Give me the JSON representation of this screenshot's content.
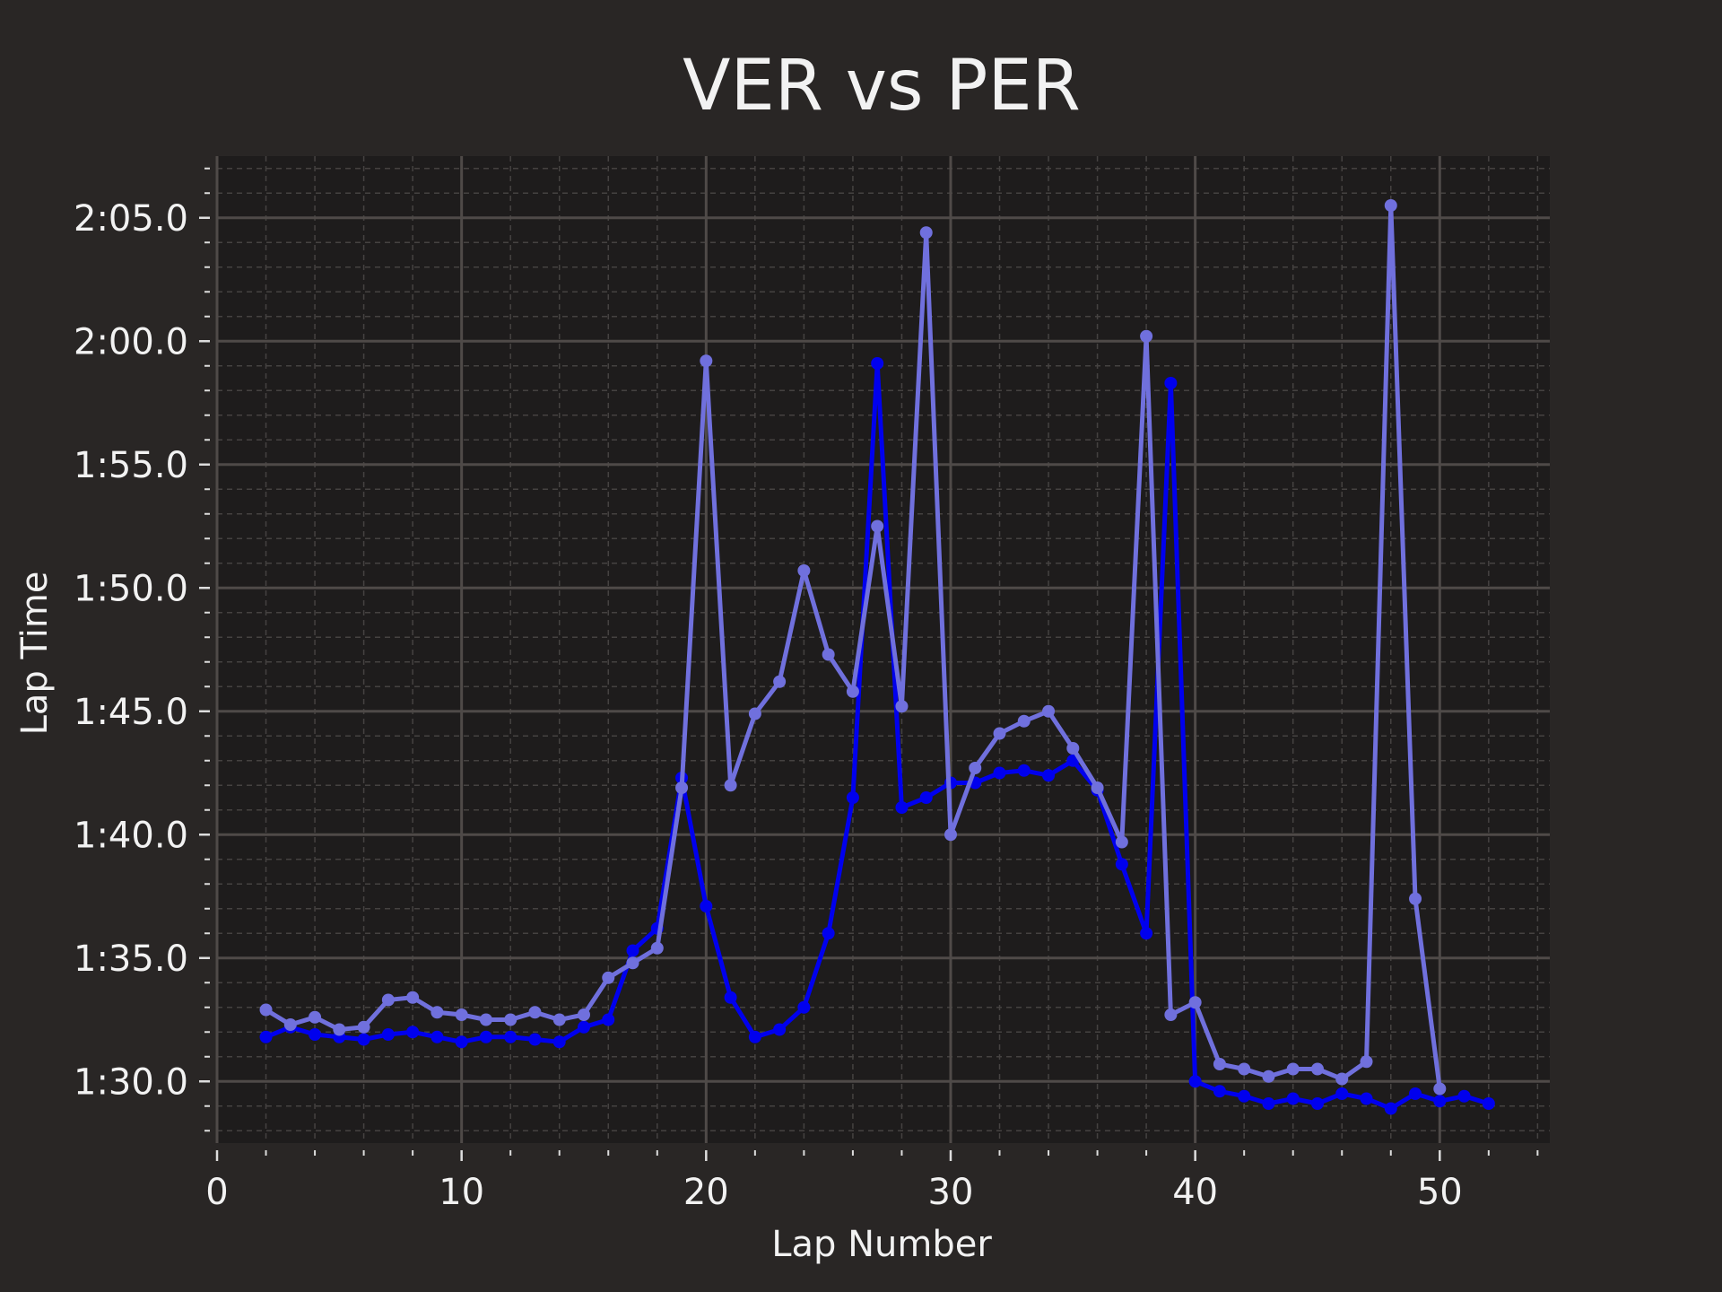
{
  "chart_data": {
    "type": "line",
    "title": "VER vs PER",
    "xlabel": "Lap Number",
    "ylabel": "Lap Time",
    "xlim": [
      0,
      54.5
    ],
    "ylim": [
      87.5,
      127.5
    ],
    "xticks": [
      0,
      10,
      20,
      30,
      40,
      50
    ],
    "yticks": [
      90,
      95,
      100,
      105,
      110,
      115,
      120,
      125
    ],
    "ytick_labels": [
      "1:30.0",
      "1:35.0",
      "1:40.0",
      "1:45.0",
      "1:50.0",
      "1:55.0",
      "2:00.0",
      "2:05.0"
    ],
    "grid": true,
    "background_color": "#292625",
    "plot_background_color": "#1e1c1c",
    "series": [
      {
        "color": "#0000ee",
        "x": [
          2,
          3,
          4,
          5,
          6,
          7,
          8,
          9,
          10,
          11,
          12,
          13,
          14,
          15,
          16,
          17,
          18,
          19,
          20,
          21,
          22,
          23,
          24,
          25,
          26,
          27,
          28,
          29,
          30,
          31,
          32,
          33,
          34,
          35,
          36,
          37,
          38,
          39,
          40,
          41,
          42,
          43,
          44,
          45,
          46,
          47,
          48,
          49,
          50,
          51,
          52
        ],
        "y": [
          91.8,
          92.2,
          91.9,
          91.8,
          91.7,
          91.9,
          92.0,
          91.8,
          91.6,
          91.8,
          91.8,
          91.7,
          91.6,
          92.2,
          92.5,
          95.3,
          96.2,
          102.3,
          97.1,
          93.4,
          91.8,
          92.1,
          93.0,
          96.0,
          101.5,
          119.1,
          101.1,
          101.5,
          102.1,
          102.1,
          102.5,
          102.6,
          102.4,
          103.0,
          101.8,
          98.8,
          96.0,
          118.3,
          90.0,
          89.6,
          89.4,
          89.1,
          89.3,
          89.1,
          89.5,
          89.3,
          88.9,
          89.5,
          89.2,
          89.4,
          89.1
        ]
      },
      {
        "color": "#7070dd",
        "x": [
          2,
          3,
          4,
          5,
          6,
          7,
          8,
          9,
          10,
          11,
          12,
          13,
          14,
          15,
          16,
          17,
          18,
          19,
          20,
          21,
          22,
          23,
          24,
          25,
          26,
          27,
          28,
          29,
          30,
          31,
          32,
          33,
          34,
          35,
          36,
          37,
          38,
          39,
          40,
          41,
          42,
          43,
          44,
          45,
          46,
          47,
          48,
          49,
          50
        ],
        "y": [
          92.9,
          92.3,
          92.6,
          92.1,
          92.2,
          93.3,
          93.4,
          92.8,
          92.7,
          92.5,
          92.5,
          92.8,
          92.5,
          92.7,
          94.2,
          94.8,
          95.4,
          101.9,
          119.2,
          102.0,
          104.9,
          106.2,
          110.7,
          107.3,
          105.8,
          112.5,
          105.2,
          124.4,
          100.0,
          102.7,
          104.1,
          104.6,
          105.0,
          103.5,
          101.9,
          99.7,
          120.2,
          92.7,
          93.2,
          90.7,
          90.5,
          90.2,
          90.5,
          90.5,
          90.1,
          90.8,
          125.5,
          97.4,
          89.7
        ]
      }
    ]
  }
}
